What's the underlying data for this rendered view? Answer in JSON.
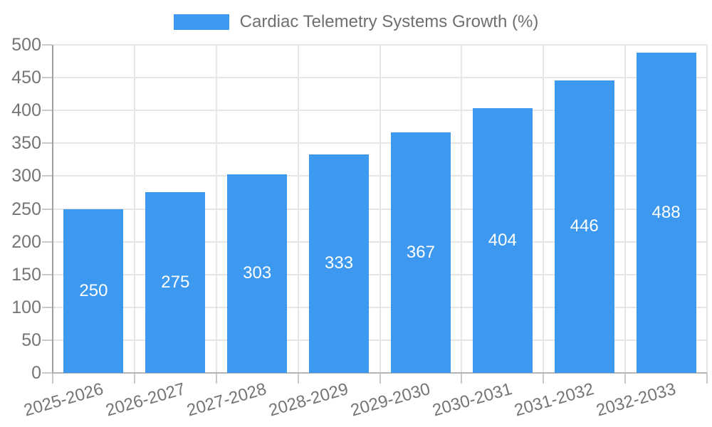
{
  "title": "Cardiac Telemetry Systems Growth (%)",
  "legend": {
    "label": "Cardiac Telemetry Systems Growth (%)"
  },
  "colors": {
    "bar": "#3d99ef",
    "grid": "#e6e6e6",
    "axis_y": "#9e9e9e",
    "axis_x": "#b5b5b5",
    "tick": "#c9c9c9",
    "text": "#757575",
    "value_label": "#ffffff"
  },
  "chart_data": {
    "type": "bar",
    "title": "Cardiac Telemetry Systems Growth (%)",
    "categories": [
      "2025-2026",
      "2026-2027",
      "2027-2028",
      "2028-2029",
      "2029-2030",
      "2030-2031",
      "2031-2032",
      "2032-2033"
    ],
    "values": [
      250,
      275,
      303,
      333,
      367,
      404,
      446,
      488
    ],
    "series": [
      {
        "name": "Cardiac Telemetry Systems Growth (%)",
        "values": [
          250,
          275,
          303,
          333,
          367,
          404,
          446,
          488
        ]
      }
    ],
    "xlabel": "",
    "ylabel": "",
    "ylim": [
      0,
      500
    ],
    "yticks": [
      0,
      50,
      100,
      150,
      200,
      250,
      300,
      350,
      400,
      450,
      500
    ],
    "grid": true,
    "legend_position": "top",
    "value_label_position": "inside-center",
    "x_label_rotation_deg": -16
  }
}
